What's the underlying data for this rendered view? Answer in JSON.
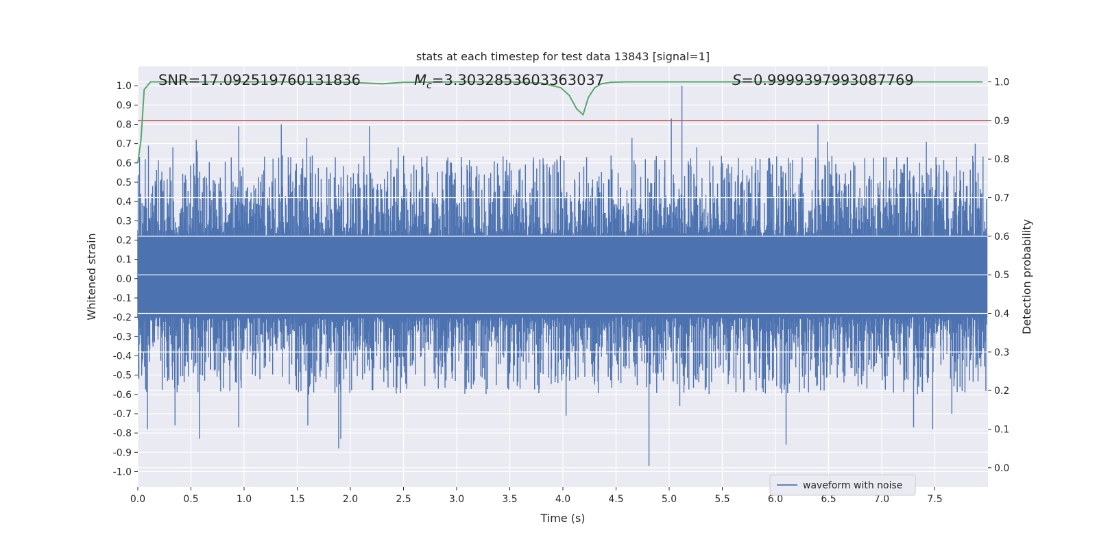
{
  "chart_data": {
    "type": "line",
    "title": "stats at each timestep for test data 13843 [signal=1]",
    "xlabel": "Time (s)",
    "ylabel_left": "Whitened strain",
    "ylabel_right": "Detection probability",
    "xlim": [
      0.0,
      8.0
    ],
    "ylim_left": [
      -1.08,
      1.1
    ],
    "ylim_right": [
      -0.05,
      1.04
    ],
    "x_ticks": [
      "0.0",
      "0.5",
      "1.0",
      "1.5",
      "2.0",
      "2.5",
      "3.0",
      "3.5",
      "4.0",
      "4.5",
      "5.0",
      "5.5",
      "6.0",
      "6.5",
      "7.0",
      "7.5"
    ],
    "y_ticks_left": [
      "-1.0",
      "-0.9",
      "-0.8",
      "-0.7",
      "-0.6",
      "-0.5",
      "-0.4",
      "-0.3",
      "-0.2",
      "-0.1",
      "0.0",
      "0.1",
      "0.2",
      "0.3",
      "0.4",
      "0.5",
      "0.6",
      "0.7",
      "0.8",
      "0.9",
      "1.0"
    ],
    "y_ticks_right": [
      "0.0",
      "0.1",
      "0.2",
      "0.3",
      "0.4",
      "0.5",
      "0.6",
      "0.7",
      "0.8",
      "0.9",
      "1.0"
    ],
    "grid": true,
    "legend_position": "bottom-right",
    "annotations": {
      "snr": "SNR=17.092519760131836",
      "mc_prefix": "M",
      "mc_sub": "c",
      "mc_value": "=3.3032853603363037",
      "s_prefix": "S",
      "s_value": "=0.9999397993087769"
    },
    "series": [
      {
        "name": "waveform with noise",
        "axis": "left",
        "color": "#4c72b0",
        "description": "whitened strain noise, roughly within ±0.4 with spikes up to 1.0 and down to -0.97",
        "peaks": [
          [
            0.07,
            0.62
          ],
          [
            0.1,
            0.69
          ],
          [
            0.33,
            0.68
          ],
          [
            0.55,
            0.72
          ],
          [
            0.56,
            0.66
          ],
          [
            0.95,
            0.79
          ],
          [
            1.35,
            0.8
          ],
          [
            1.59,
            0.73
          ],
          [
            2.18,
            0.79
          ],
          [
            2.45,
            0.68
          ],
          [
            3.5,
            0.6
          ],
          [
            4.65,
            0.73
          ],
          [
            5.02,
            0.83
          ],
          [
            5.12,
            1.0
          ],
          [
            5.26,
            0.68
          ],
          [
            6.4,
            0.8
          ],
          [
            6.49,
            0.71
          ],
          [
            7.42,
            0.71
          ],
          [
            7.88,
            0.7
          ]
        ],
        "troughs": [
          [
            0.09,
            -0.78
          ],
          [
            0.35,
            -0.76
          ],
          [
            0.58,
            -0.83
          ],
          [
            0.95,
            -0.77
          ],
          [
            1.6,
            -0.76
          ],
          [
            1.89,
            -0.88
          ],
          [
            1.91,
            -0.83
          ],
          [
            4.03,
            -0.71
          ],
          [
            4.81,
            -0.97
          ],
          [
            5.1,
            -0.66
          ],
          [
            6.1,
            -0.86
          ],
          [
            7.3,
            -0.77
          ],
          [
            7.48,
            -0.78
          ],
          [
            7.66,
            -0.7
          ]
        ]
      },
      {
        "name": "detection probability",
        "axis": "right",
        "color": "#55a868",
        "x": [
          0.0,
          0.03,
          0.06,
          0.12,
          0.5,
          1.0,
          1.5,
          2.0,
          2.3,
          2.5,
          3.0,
          3.5,
          3.8,
          3.98,
          4.06,
          4.13,
          4.19,
          4.24,
          4.3,
          4.36,
          4.45,
          4.6,
          5.0,
          6.0,
          7.0,
          7.95
        ],
        "y": [
          0.79,
          0.85,
          0.98,
          1.0,
          1.0,
          1.0,
          1.0,
          0.999,
          0.995,
          0.999,
          1.0,
          1.0,
          0.997,
          0.985,
          0.965,
          0.93,
          0.915,
          0.96,
          0.985,
          0.995,
          0.999,
          1.0,
          1.0,
          1.0,
          1.0,
          1.0
        ]
      },
      {
        "name": "threshold",
        "axis": "right",
        "color": "#c44e52",
        "y": 0.9
      }
    ]
  }
}
